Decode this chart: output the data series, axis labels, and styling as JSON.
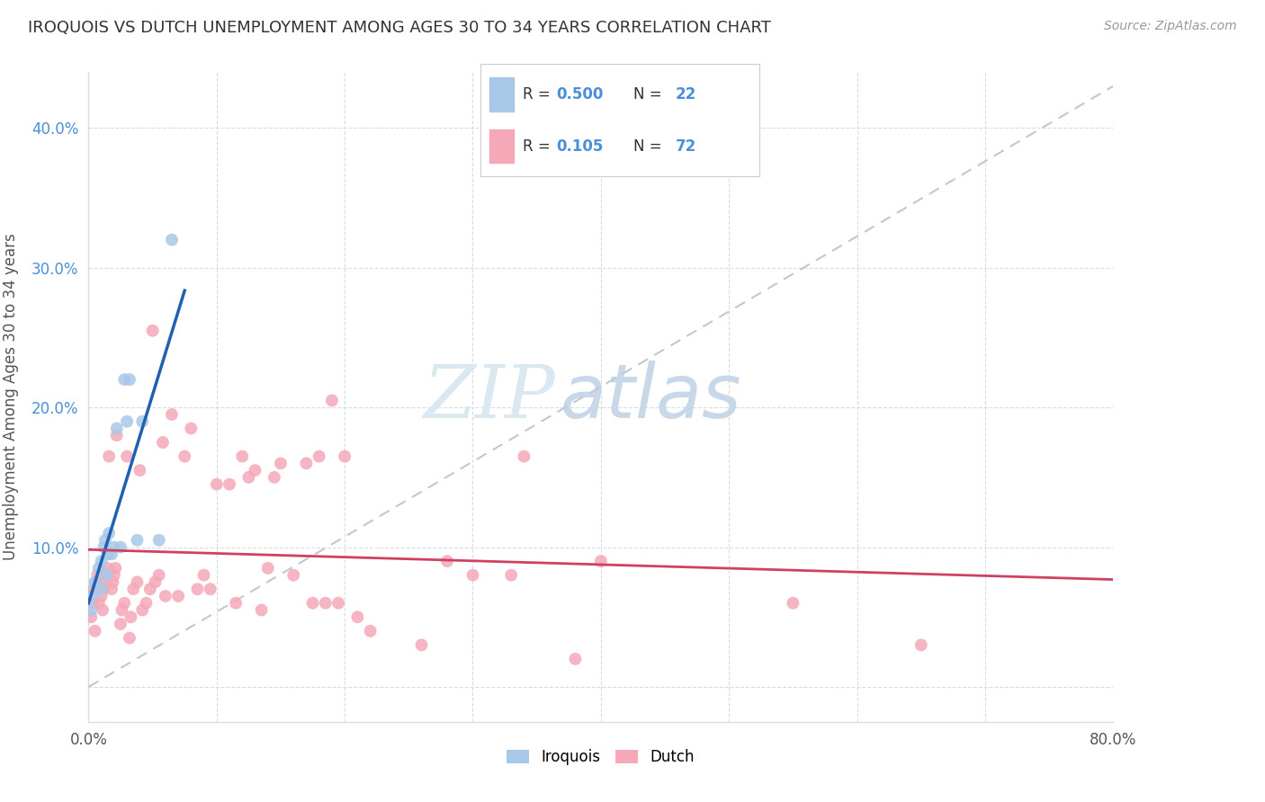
{
  "title": "IROQUOIS VS DUTCH UNEMPLOYMENT AMONG AGES 30 TO 34 YEARS CORRELATION CHART",
  "source": "Source: ZipAtlas.com",
  "ylabel": "Unemployment Among Ages 30 to 34 years",
  "xlim": [
    0.0,
    0.8
  ],
  "ylim": [
    -0.025,
    0.44
  ],
  "xticks": [
    0.0,
    0.1,
    0.2,
    0.3,
    0.4,
    0.5,
    0.6,
    0.7,
    0.8
  ],
  "xticklabels": [
    "0.0%",
    "",
    "",
    "",
    "",
    "",
    "",
    "",
    "80.0%"
  ],
  "ytick_positions": [
    0.0,
    0.1,
    0.2,
    0.3,
    0.4
  ],
  "yticklabels_right": [
    "",
    "10.0%",
    "20.0%",
    "30.0%",
    "40.0%"
  ],
  "watermark_zip": "ZIP",
  "watermark_atlas": "atlas",
  "iroquois_color": "#a8c8e8",
  "dutch_color": "#f4a8b8",
  "iroquois_line_color": "#2060b0",
  "dutch_line_color": "#d04060",
  "dashed_line_color": "#c0c8d0",
  "iroquois_R": "0.500",
  "iroquois_N": "22",
  "dutch_R": "0.105",
  "dutch_N": "72",
  "legend_R_color": "#4a90d9",
  "legend_N_color": "#4a90d9",
  "iroquois_x": [
    0.002,
    0.003,
    0.005,
    0.008,
    0.01,
    0.01,
    0.012,
    0.013,
    0.014,
    0.015,
    0.016,
    0.018,
    0.02,
    0.022,
    0.025,
    0.028,
    0.03,
    0.032,
    0.038,
    0.042,
    0.055,
    0.065
  ],
  "iroquois_y": [
    0.055,
    0.065,
    0.075,
    0.085,
    0.07,
    0.09,
    0.1,
    0.105,
    0.08,
    0.095,
    0.11,
    0.095,
    0.1,
    0.185,
    0.1,
    0.22,
    0.19,
    0.22,
    0.105,
    0.19,
    0.105,
    0.32
  ],
  "dutch_x": [
    0.002,
    0.003,
    0.004,
    0.005,
    0.006,
    0.007,
    0.008,
    0.01,
    0.011,
    0.012,
    0.013,
    0.014,
    0.015,
    0.016,
    0.018,
    0.019,
    0.02,
    0.021,
    0.022,
    0.025,
    0.026,
    0.028,
    0.03,
    0.032,
    0.033,
    0.035,
    0.038,
    0.04,
    0.042,
    0.045,
    0.048,
    0.05,
    0.052,
    0.055,
    0.058,
    0.06,
    0.065,
    0.07,
    0.075,
    0.08,
    0.085,
    0.09,
    0.095,
    0.1,
    0.11,
    0.115,
    0.12,
    0.125,
    0.13,
    0.135,
    0.14,
    0.145,
    0.15,
    0.16,
    0.17,
    0.175,
    0.18,
    0.185,
    0.19,
    0.195,
    0.2,
    0.21,
    0.22,
    0.26,
    0.28,
    0.3,
    0.33,
    0.34,
    0.38,
    0.4,
    0.55,
    0.65
  ],
  "dutch_y": [
    0.05,
    0.06,
    0.07,
    0.04,
    0.075,
    0.08,
    0.06,
    0.065,
    0.055,
    0.07,
    0.075,
    0.08,
    0.085,
    0.165,
    0.07,
    0.075,
    0.08,
    0.085,
    0.18,
    0.045,
    0.055,
    0.06,
    0.165,
    0.035,
    0.05,
    0.07,
    0.075,
    0.155,
    0.055,
    0.06,
    0.07,
    0.255,
    0.075,
    0.08,
    0.175,
    0.065,
    0.195,
    0.065,
    0.165,
    0.185,
    0.07,
    0.08,
    0.07,
    0.145,
    0.145,
    0.06,
    0.165,
    0.15,
    0.155,
    0.055,
    0.085,
    0.15,
    0.16,
    0.08,
    0.16,
    0.06,
    0.165,
    0.06,
    0.205,
    0.06,
    0.165,
    0.05,
    0.04,
    0.03,
    0.09,
    0.08,
    0.08,
    0.165,
    0.02,
    0.09,
    0.06,
    0.03
  ],
  "background_color": "#ffffff",
  "grid_color": "#d8dde2",
  "title_color": "#333333",
  "source_color": "#999999",
  "ylabel_color": "#555555",
  "tick_color": "#4a90d9"
}
